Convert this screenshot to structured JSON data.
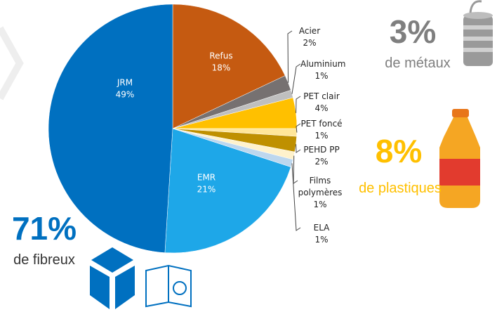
{
  "chart_data": {
    "type": "pie",
    "categories": [
      "Refus",
      "Acier",
      "Aluminium",
      "PET clair",
      "PET foncé",
      "PEHD PP",
      "Films polymères",
      "ELA",
      "EMR",
      "JRM"
    ],
    "values": [
      18,
      2,
      1,
      4,
      1,
      2,
      1,
      1,
      21,
      49
    ],
    "value_labels": [
      "18%",
      "2%",
      "1%",
      "4%",
      "1%",
      "2%",
      "1%",
      "1%",
      "21%",
      "49%"
    ],
    "colors": [
      "#c55a11",
      "#767171",
      "#bfbfbf",
      "#ffc000",
      "#ffe699",
      "#bf9000",
      "#fff2cc",
      "#bdd7ee",
      "#1ea7e8",
      "#0070c0"
    ],
    "annotations": [
      {
        "value": "3%",
        "text": "de métaux"
      },
      {
        "value": "8%",
        "text": "de plastiques"
      },
      {
        "value": "71%",
        "text": "de fibreux"
      }
    ]
  }
}
